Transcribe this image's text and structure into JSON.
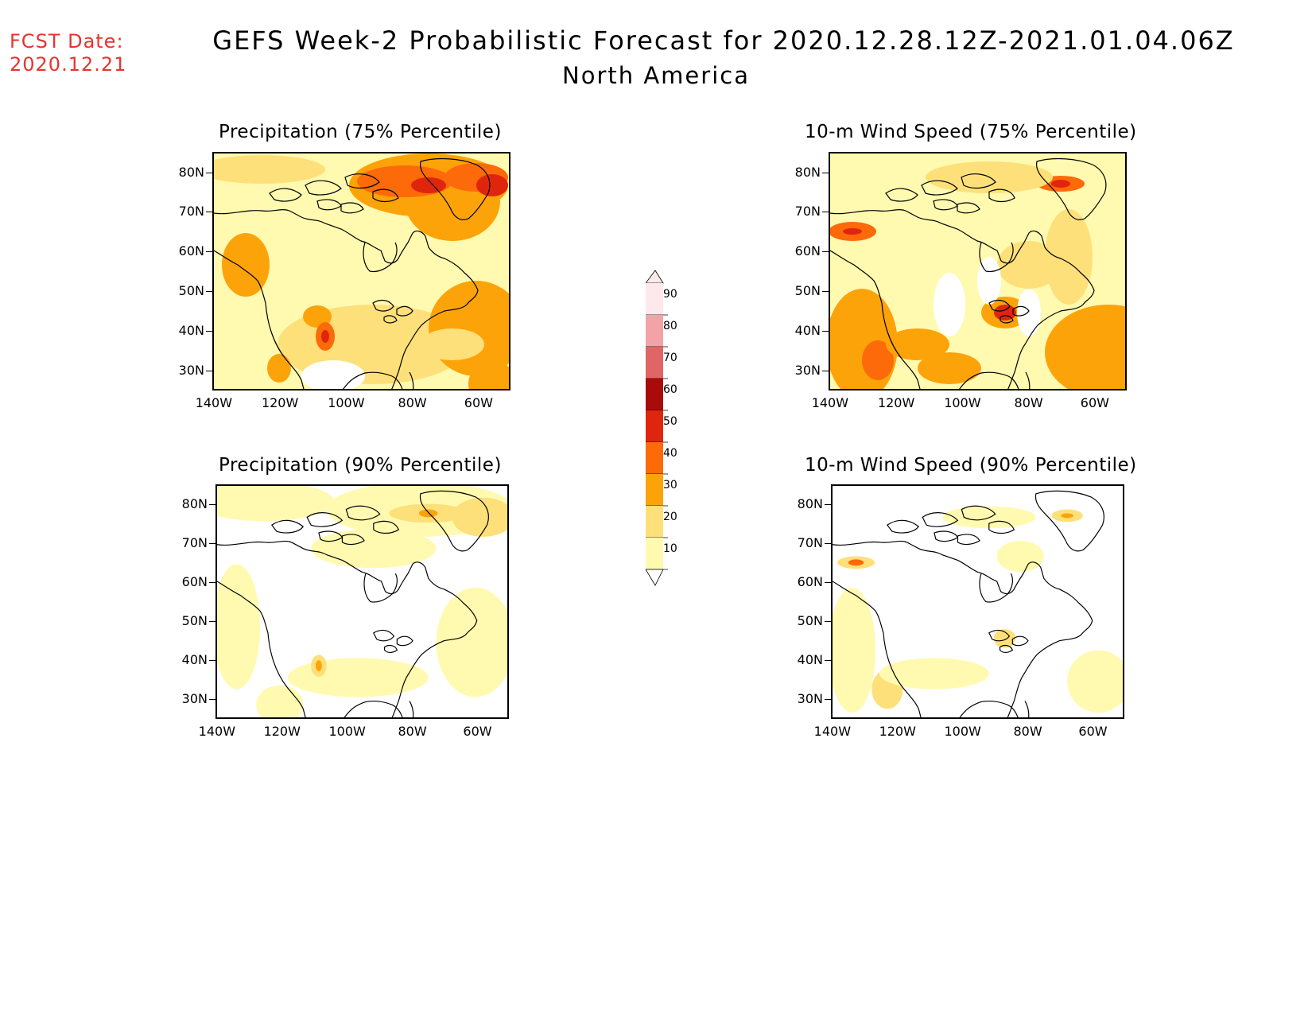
{
  "header": {
    "fcst_label": "FCST Date:",
    "fcst_date": "2020.12.21",
    "title": "GEFS Week-2 Probabilistic Forecast for 2020.12.28.12Z-2021.01.04.06Z",
    "region": "North America"
  },
  "panels": [
    {
      "id": "precip75",
      "title": "Precipitation (75% Percentile)"
    },
    {
      "id": "wind75",
      "title": "10-m Wind Speed (75% Percentile)"
    },
    {
      "id": "precip90",
      "title": "Precipitation (90% Percentile)"
    },
    {
      "id": "wind90",
      "title": "10-m Wind Speed (90% Percentile)"
    }
  ],
  "axes": {
    "lat_labels": [
      "80N",
      "70N",
      "60N",
      "50N",
      "40N",
      "30N"
    ],
    "lon_labels": [
      "140W",
      "120W",
      "100W",
      "80W",
      "60W"
    ]
  },
  "colorbar": {
    "levels": [
      "90",
      "80",
      "70",
      "60",
      "50",
      "40",
      "30",
      "20",
      "10"
    ],
    "colors": [
      "#fde9ec",
      "#f3a3a8",
      "#e06565",
      "#a90a0a",
      "#e0250f",
      "#fd6a0a",
      "#fda30a",
      "#fde07a",
      "#fffab0"
    ]
  }
}
